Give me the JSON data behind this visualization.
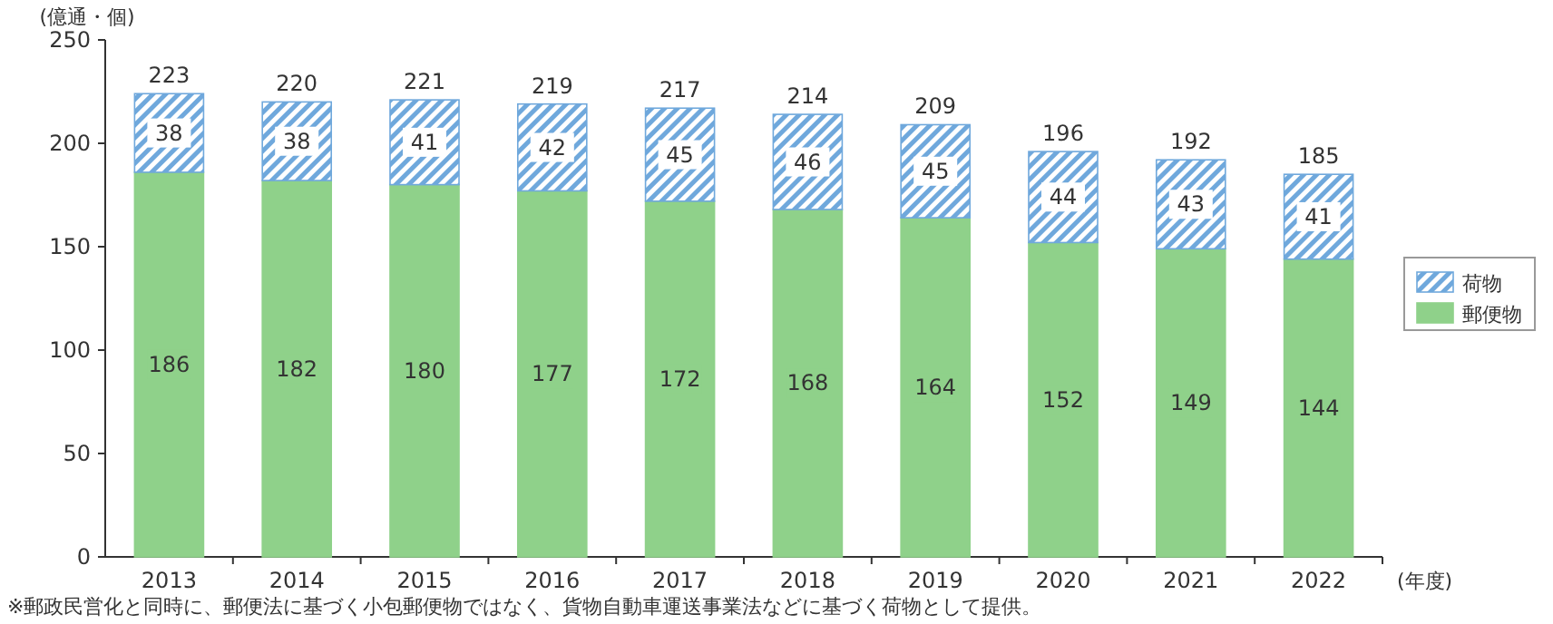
{
  "chart_data": {
    "type": "bar",
    "stacked": true,
    "ylabel": "(億通・個)",
    "xlabel": "(年度)",
    "categories": [
      "2013",
      "2014",
      "2015",
      "2016",
      "2017",
      "2018",
      "2019",
      "2020",
      "2021",
      "2022"
    ],
    "series": [
      {
        "name": "郵便物",
        "color": "#8fd18a",
        "values": [
          186,
          182,
          180,
          177,
          172,
          168,
          164,
          152,
          149,
          144
        ]
      },
      {
        "name": "荷物",
        "color": "#6fa8dc",
        "values": [
          38,
          38,
          41,
          42,
          45,
          46,
          45,
          44,
          43,
          41
        ]
      }
    ],
    "data_labels": true,
    "totals": [
      "223",
      "220",
      "221",
      "219",
      "217",
      "214",
      "209",
      "196",
      "192",
      "185"
    ],
    "ylim": [
      0,
      250
    ],
    "yticks": [
      0,
      50,
      100,
      150,
      200,
      250
    ],
    "grid": false,
    "legend": "right",
    "annotations": [
      "※郵政民営化と同時に、郵便法に基づく小包郵便物ではなく、貨物自動車運送事業法などに基づく荷物として提供。"
    ]
  }
}
